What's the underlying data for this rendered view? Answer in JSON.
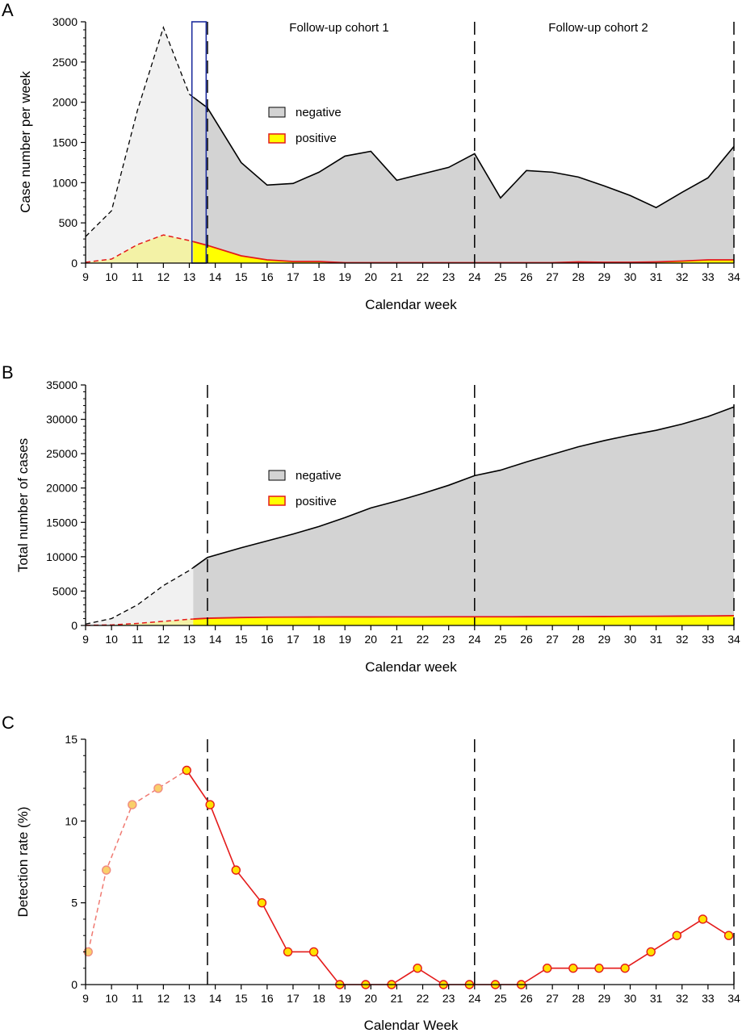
{
  "chart_data": [
    {
      "panel": "A",
      "type": "area",
      "xlabel": "Calendar week",
      "ylabel": "Case number per week",
      "xlim": [
        9,
        34
      ],
      "ylim": [
        0,
        3000
      ],
      "x_ticks": [
        9,
        10,
        11,
        12,
        13,
        14,
        15,
        16,
        17,
        18,
        19,
        20,
        21,
        22,
        23,
        24,
        25,
        26,
        27,
        28,
        29,
        30,
        31,
        32,
        33,
        34
      ],
      "y_ticks": [
        0,
        500,
        1000,
        1500,
        2000,
        2500,
        3000
      ],
      "legend": {
        "position": "top-center",
        "entries": [
          "negative",
          "positive"
        ]
      },
      "annotations": [
        "Follow-up cohort 1",
        "Follow-up cohort 2"
      ],
      "vertical_lines": [
        13.7,
        24,
        34
      ],
      "highlight_box": {
        "x": [
          13.1,
          13.65
        ],
        "y": [
          0,
          3000
        ]
      },
      "series": [
        {
          "name": "negative",
          "x": [
            9,
            10,
            11,
            12,
            13,
            13.7,
            15,
            16,
            17,
            18,
            19,
            20,
            21,
            22,
            23,
            24,
            25,
            26,
            27,
            28,
            29,
            30,
            31,
            32,
            33,
            34
          ],
          "values": [
            330,
            650,
            1900,
            2930,
            2100,
            1930,
            1250,
            970,
            990,
            1130,
            1330,
            1390,
            1030,
            1110,
            1190,
            1360,
            810,
            1150,
            1130,
            1070,
            960,
            840,
            690,
            880,
            1060,
            1450
          ]
        },
        {
          "name": "positive",
          "x": [
            9,
            10,
            11,
            12,
            13,
            13.7,
            15,
            16,
            17,
            18,
            19,
            20,
            21,
            22,
            23,
            24,
            25,
            26,
            27,
            28,
            29,
            30,
            31,
            32,
            33,
            34
          ],
          "values": [
            10,
            50,
            230,
            350,
            280,
            220,
            90,
            40,
            20,
            20,
            5,
            5,
            5,
            5,
            5,
            5,
            5,
            5,
            5,
            15,
            10,
            10,
            15,
            25,
            40,
            40
          ]
        }
      ]
    },
    {
      "panel": "B",
      "type": "area",
      "xlabel": "Calendar week",
      "ylabel": "Total number of cases",
      "xlim": [
        9,
        34
      ],
      "ylim": [
        0,
        35000
      ],
      "x_ticks": [
        9,
        10,
        11,
        12,
        13,
        14,
        15,
        16,
        17,
        18,
        19,
        20,
        21,
        22,
        23,
        24,
        25,
        26,
        27,
        28,
        29,
        30,
        31,
        32,
        33,
        34
      ],
      "y_ticks": [
        0,
        5000,
        10000,
        15000,
        20000,
        25000,
        30000,
        35000
      ],
      "legend": {
        "position": "top-center",
        "entries": [
          "negative",
          "positive"
        ]
      },
      "vertical_lines": [
        13.7,
        24,
        34
      ],
      "series": [
        {
          "name": "negative",
          "x": [
            9,
            10,
            11,
            12,
            13,
            13.7,
            15,
            16,
            17,
            18,
            19,
            20,
            21,
            22,
            23,
            24,
            25,
            26,
            27,
            28,
            29,
            30,
            31,
            32,
            33,
            34
          ],
          "values": [
            200,
            1000,
            3000,
            5800,
            8000,
            9900,
            11300,
            12300,
            13300,
            14400,
            15700,
            17100,
            18100,
            19200,
            20400,
            21800,
            22600,
            23800,
            24900,
            26000,
            26900,
            27700,
            28400,
            29300,
            30400,
            31800
          ]
        },
        {
          "name": "positive",
          "x": [
            9,
            10,
            11,
            12,
            13,
            13.7,
            15,
            16,
            17,
            18,
            19,
            20,
            21,
            22,
            23,
            24,
            25,
            26,
            27,
            28,
            29,
            30,
            31,
            32,
            33,
            34
          ],
          "values": [
            20,
            80,
            300,
            600,
            900,
            1050,
            1150,
            1200,
            1220,
            1230,
            1240,
            1240,
            1250,
            1250,
            1260,
            1260,
            1260,
            1270,
            1280,
            1290,
            1300,
            1320,
            1340,
            1360,
            1380,
            1420
          ]
        }
      ]
    },
    {
      "panel": "C",
      "type": "line",
      "xlabel": "Calendar Week",
      "ylabel": "Detection rate (%)",
      "xlim": [
        9,
        34
      ],
      "ylim": [
        0,
        15
      ],
      "x_ticks": [
        9,
        10,
        11,
        12,
        13,
        14,
        15,
        16,
        17,
        18,
        19,
        20,
        21,
        22,
        23,
        24,
        25,
        26,
        27,
        28,
        29,
        30,
        31,
        32,
        33,
        34
      ],
      "y_ticks": [
        0,
        5,
        10,
        15
      ],
      "vertical_lines": [
        13.7,
        24,
        34
      ],
      "series": [
        {
          "x": [
            9.1,
            9.8,
            10.8,
            11.8,
            12.9,
            13.8,
            14.8,
            15.8,
            16.8,
            17.8,
            18.8,
            19.8,
            20.8,
            21.8,
            22.8,
            23.8,
            24.8,
            25.8,
            26.8,
            27.8,
            28.8,
            29.8,
            30.8,
            31.8,
            32.8,
            33.8
          ],
          "values": [
            2,
            7,
            11,
            12,
            13.1,
            11,
            7,
            5,
            2,
            2,
            0,
            0,
            0,
            1,
            0,
            0,
            0,
            0,
            1,
            1,
            1,
            1,
            2,
            3,
            4,
            3
          ]
        }
      ]
    }
  ],
  "panels": {
    "A": {
      "letter": "A"
    },
    "B": {
      "letter": "B"
    },
    "C": {
      "letter": "C"
    }
  },
  "colors": {
    "negative_fill": "#d3d3d3",
    "negative_fill_light": "#f1f1f1",
    "positive_fill": "#ffff00",
    "positive_fill_light": "#f3f2a6",
    "positive_line": "#e41a1a",
    "negative_line": "#000000",
    "marker_fill": "#ffe200",
    "highlight_box": "#1f2f9e"
  }
}
